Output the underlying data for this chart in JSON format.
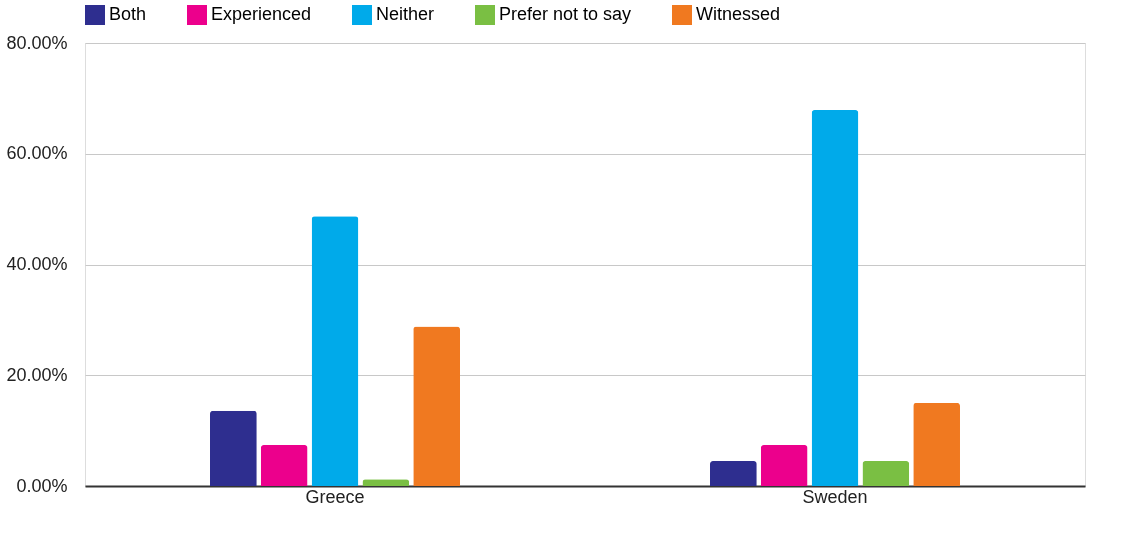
{
  "chart_data": {
    "type": "bar",
    "categories": [
      "Greece",
      "Sweden"
    ],
    "series": [
      {
        "name": "Both",
        "color": "#2e2e8f",
        "values": [
          13.6,
          4.5
        ]
      },
      {
        "name": "Experienced",
        "color": "#ec008c",
        "values": [
          7.4,
          7.4
        ]
      },
      {
        "name": "Neither",
        "color": "#00aaea",
        "values": [
          48.7,
          67.9
        ]
      },
      {
        "name": "Prefer not to say",
        "color": "#7abf43",
        "values": [
          1.2,
          4.5
        ]
      },
      {
        "name": "Witnessed",
        "color": "#f07920",
        "values": [
          28.8,
          15.0
        ]
      }
    ],
    "ylim": [
      0,
      80
    ],
    "yticks": [
      {
        "value": 0,
        "label": "0.00%"
      },
      {
        "value": 20,
        "label": "20.00%"
      },
      {
        "value": 40,
        "label": "40.00%"
      },
      {
        "value": 60,
        "label": "60.00%"
      },
      {
        "value": 80,
        "label": "80.00%"
      }
    ],
    "grid": "y",
    "legend": "top"
  }
}
